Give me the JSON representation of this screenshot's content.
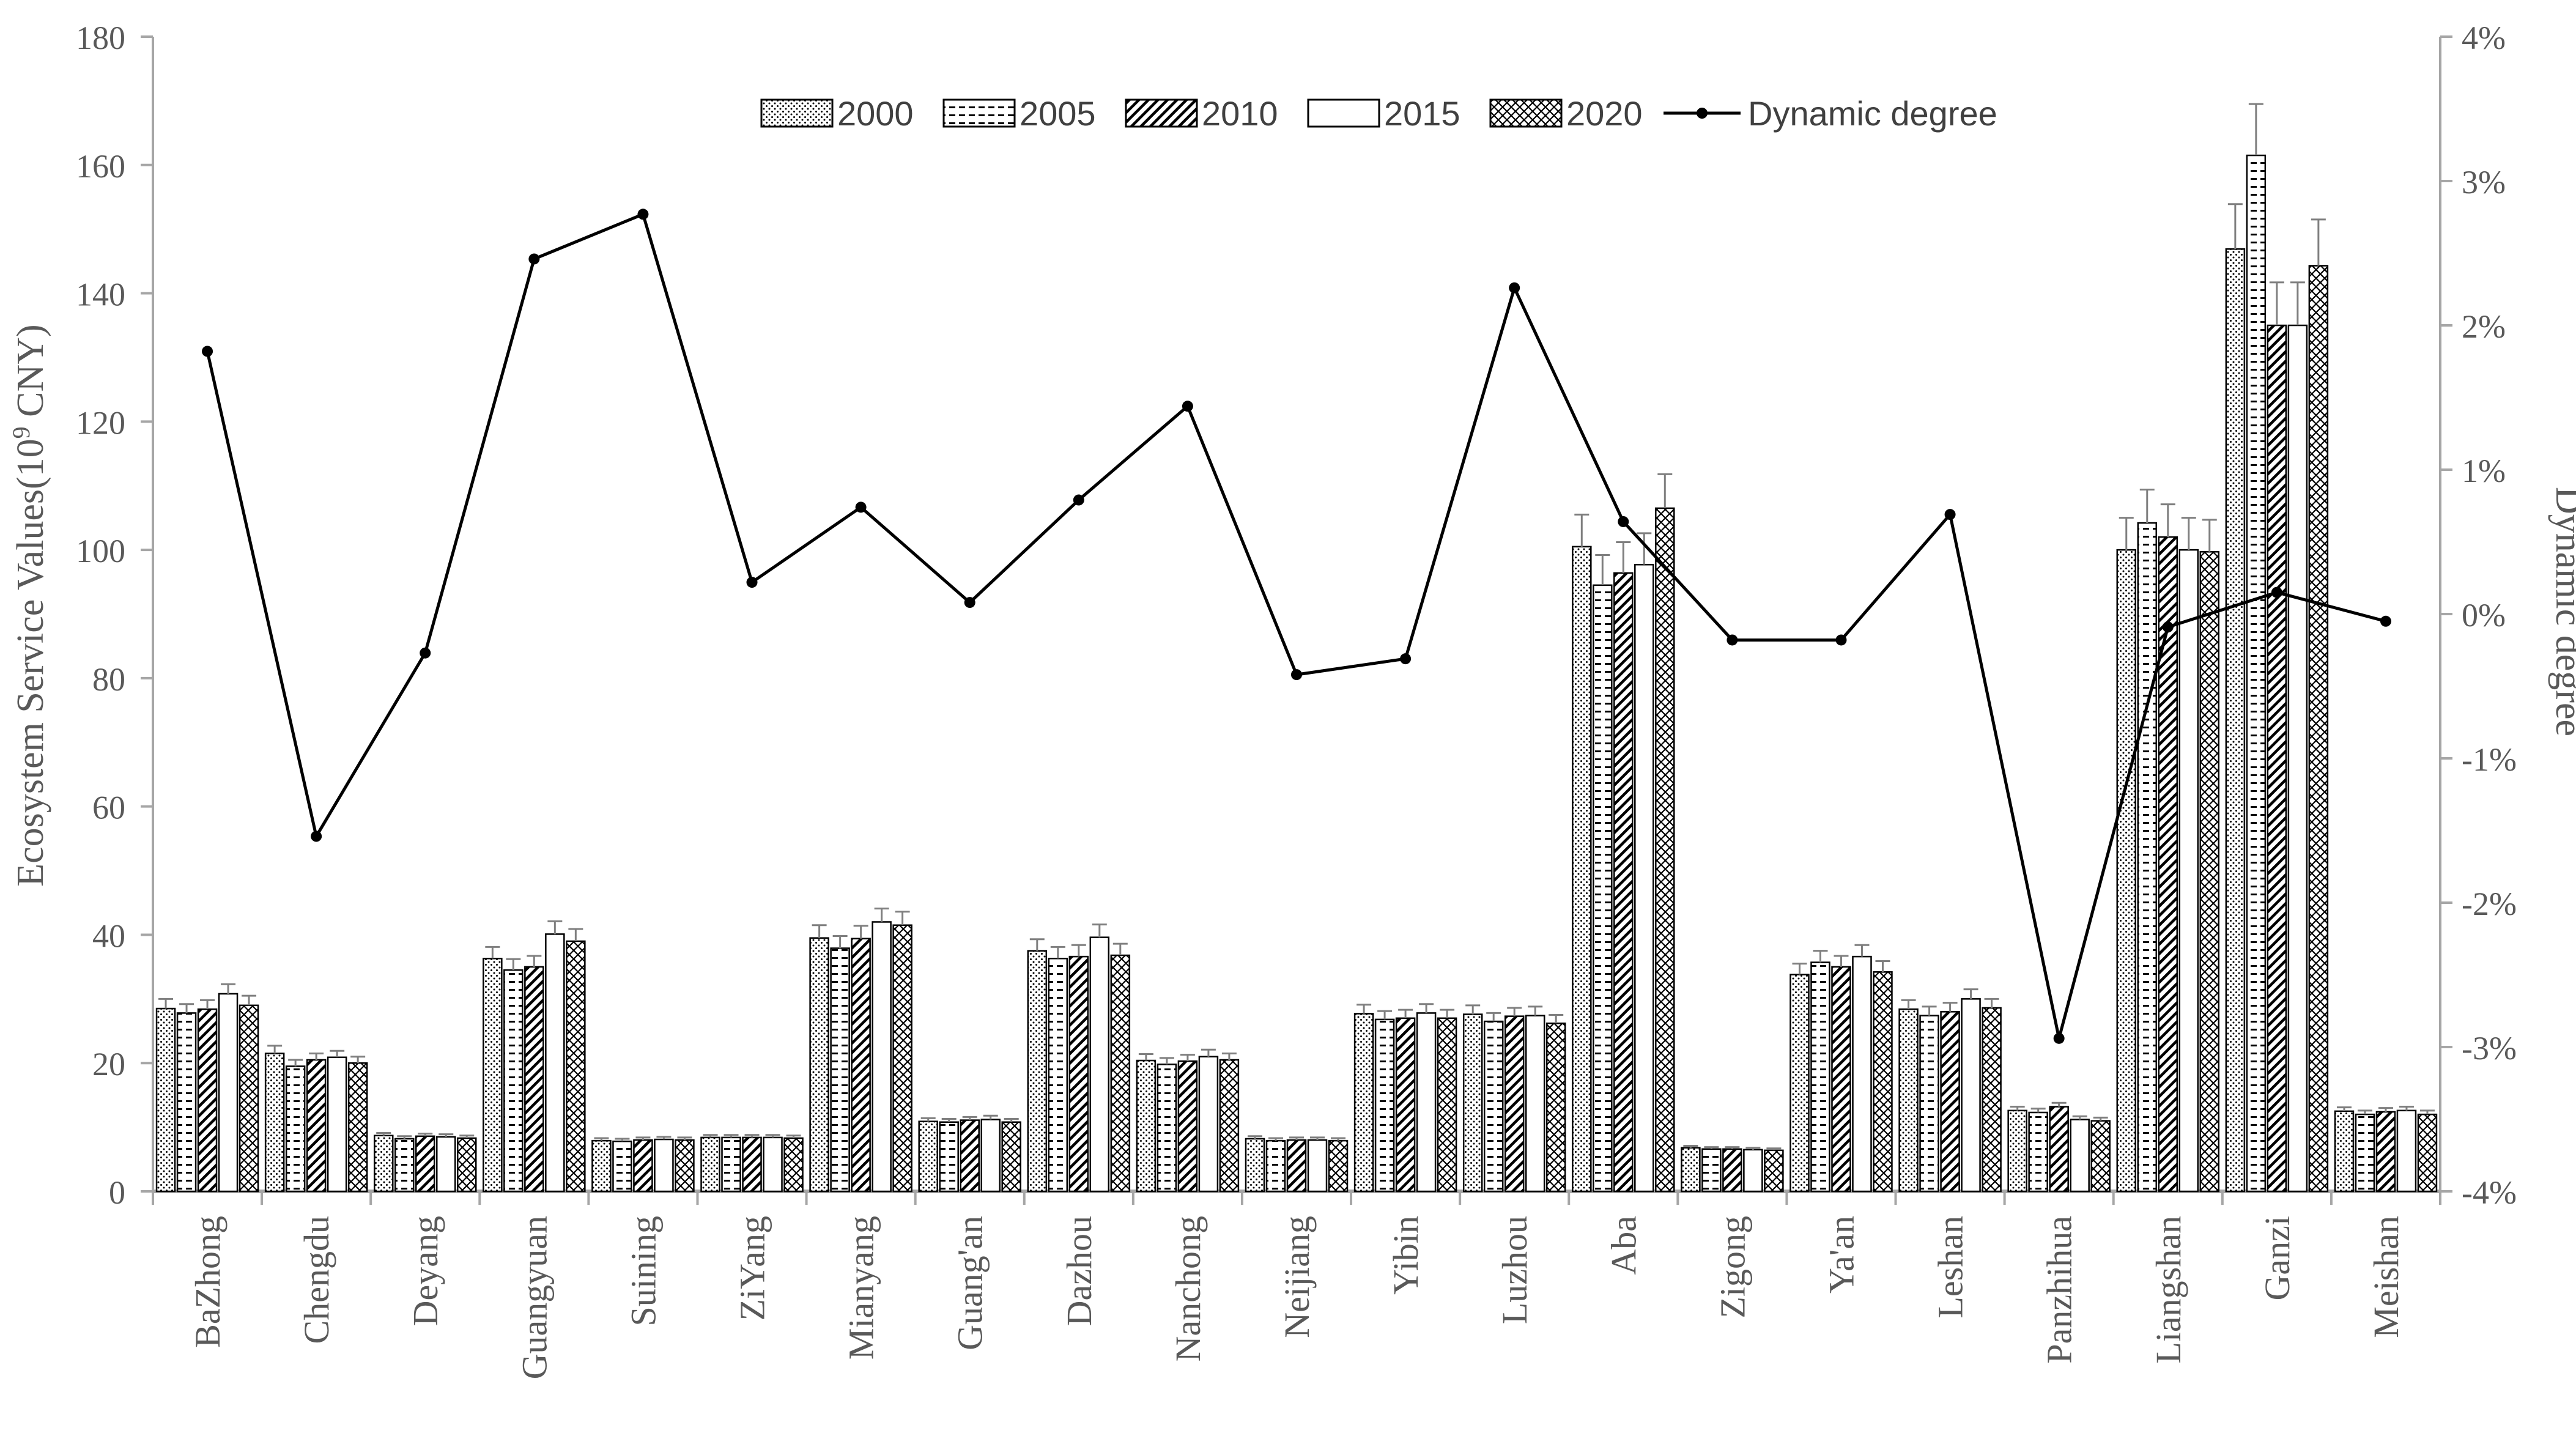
{
  "chart_data": {
    "type": "bar",
    "categories": [
      "BaZhong",
      "Chengdu",
      "Deyang",
      "Guangyuan",
      "Suining",
      "ZiYang",
      "Mianyang",
      "Guang'an",
      "Dazhou",
      "Nanchong",
      "Neijiang",
      "Yibin",
      "Luzhou",
      "Aba",
      "Zigong",
      "Ya'an",
      "Leshan",
      "Panzhihua",
      "Liangshan",
      "Ganzi",
      "Meishan"
    ],
    "ylabel_main": "Ecosystem Service Values(10",
    "ylabel_sup": "9",
    "ylabel_tail": " CNY)",
    "y2label": "Dynamic degree",
    "ylim": [
      0,
      180
    ],
    "y_ticks": [
      "0",
      "20",
      "40",
      "60",
      "80",
      "100",
      "120",
      "140",
      "160",
      "180"
    ],
    "y2lim": [
      -4,
      4
    ],
    "y2_ticks": [
      "-4%",
      "-3%",
      "-2%",
      "-1%",
      "0%",
      "1%",
      "2%",
      "3%",
      "4%"
    ],
    "legend_position": "top",
    "series": [
      {
        "name": "2000",
        "pattern": "dots",
        "values": [
          28.5,
          21.5,
          8.7,
          36.3,
          7.9,
          8.4,
          39.5,
          10.9,
          37.5,
          20.4,
          8.2,
          27.7,
          27.6,
          100.5,
          6.8,
          33.8,
          28.4,
          12.6,
          100.0,
          146.9,
          12.5
        ],
        "errors": [
          1.5,
          1.2,
          0.4,
          1.8,
          0.4,
          0.4,
          2.0,
          0.5,
          1.8,
          1.0,
          0.4,
          1.4,
          1.4,
          5.0,
          0.3,
          1.7,
          1.4,
          0.6,
          5.0,
          7.0,
          0.6
        ]
      },
      {
        "name": "2005",
        "pattern": "dashes",
        "values": [
          27.8,
          19.5,
          8.2,
          34.5,
          7.8,
          8.4,
          37.9,
          10.8,
          36.3,
          19.8,
          7.9,
          26.8,
          26.5,
          94.5,
          6.6,
          35.7,
          27.4,
          12.3,
          104.2,
          161.5,
          12.0
        ],
        "errors": [
          1.4,
          1.0,
          0.4,
          1.7,
          0.4,
          0.4,
          1.9,
          0.5,
          1.8,
          1.0,
          0.4,
          1.3,
          1.3,
          4.7,
          0.3,
          1.8,
          1.4,
          0.6,
          5.2,
          8.0,
          0.6
        ]
      },
      {
        "name": "2010",
        "pattern": "diagonal",
        "values": [
          28.4,
          20.5,
          8.6,
          35.0,
          8.0,
          8.4,
          39.4,
          11.1,
          36.6,
          20.3,
          8.0,
          27.0,
          27.3,
          96.4,
          6.6,
          35.0,
          28.0,
          13.2,
          102.0,
          135.0,
          12.4
        ],
        "errors": [
          1.4,
          1.0,
          0.4,
          1.7,
          0.4,
          0.4,
          2.0,
          0.5,
          1.8,
          1.0,
          0.4,
          1.3,
          1.3,
          4.8,
          0.3,
          1.7,
          1.4,
          0.6,
          5.1,
          6.7,
          0.6
        ]
      },
      {
        "name": "2015",
        "pattern": "plain",
        "values": [
          30.8,
          20.9,
          8.5,
          40.1,
          8.1,
          8.4,
          42.0,
          11.2,
          39.6,
          21.0,
          8.0,
          27.8,
          27.4,
          97.7,
          6.5,
          36.6,
          30.0,
          11.2,
          100.0,
          135.0,
          12.6
        ],
        "errors": [
          1.5,
          1.0,
          0.4,
          2.0,
          0.4,
          0.4,
          2.1,
          0.6,
          2.0,
          1.1,
          0.4,
          1.4,
          1.4,
          4.9,
          0.3,
          1.8,
          1.5,
          0.5,
          5.0,
          6.7,
          0.6
        ]
      },
      {
        "name": "2020",
        "pattern": "crosshatch",
        "values": [
          29.0,
          20.0,
          8.3,
          39.0,
          8.0,
          8.3,
          41.5,
          10.8,
          36.8,
          20.5,
          7.9,
          27.0,
          26.2,
          106.5,
          6.4,
          34.2,
          28.6,
          11.0,
          99.7,
          144.3,
          12.0
        ],
        "errors": [
          1.5,
          1.0,
          0.4,
          1.9,
          0.4,
          0.4,
          2.1,
          0.5,
          1.8,
          1.0,
          0.4,
          1.3,
          1.3,
          5.3,
          0.3,
          1.7,
          1.4,
          0.5,
          5.0,
          7.2,
          0.6
        ]
      }
    ],
    "line": {
      "name": "Dynamic degree",
      "values": [
        1.82,
        -1.54,
        -0.27,
        2.46,
        2.77,
        0.22,
        0.74,
        0.08,
        0.79,
        1.44,
        -0.42,
        -0.31,
        2.26,
        0.64,
        -0.18,
        -0.18,
        0.69,
        -2.94,
        -0.09,
        0.15,
        -0.05
      ]
    },
    "colors": {
      "axis": "#a6a6a6",
      "bar_stroke": "#000000",
      "line": "#000000",
      "text": "#595959"
    }
  }
}
